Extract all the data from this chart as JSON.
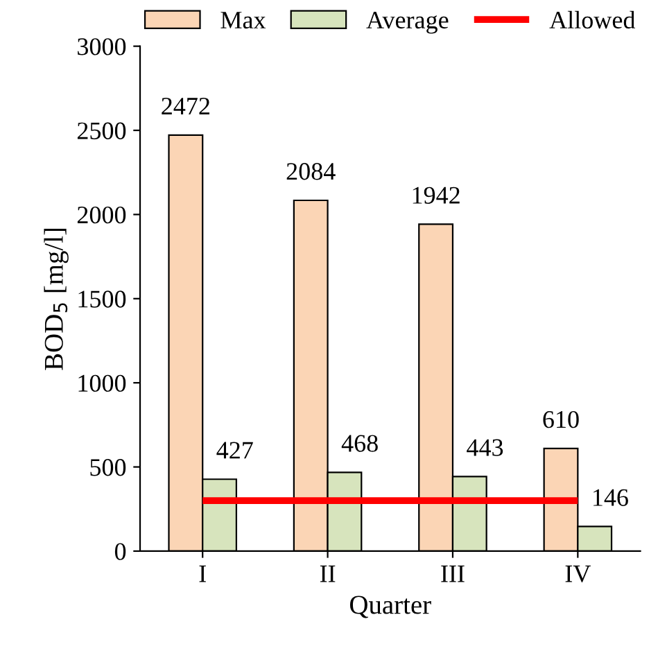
{
  "chart_data": {
    "type": "bar",
    "xlabel": "Quarter",
    "ylabel": "BOD$_{5}$ [mg/l]",
    "categories": [
      "I",
      "II",
      "III",
      "IV"
    ],
    "series": [
      {
        "name": "Max",
        "color": "#fbd5b5",
        "values": [
          2472,
          2084,
          1942,
          610
        ],
        "value_labels": [
          "2472",
          "2084",
          "1942",
          "610"
        ]
      },
      {
        "name": "Average",
        "color": "#d7e4bd",
        "values": [
          427,
          468,
          443,
          146
        ],
        "value_labels": [
          "427",
          "468",
          "443",
          "146"
        ]
      },
      {
        "name": "Allowed",
        "type": "line",
        "color": "#ff0000",
        "values": [
          300,
          300,
          300,
          300
        ]
      }
    ],
    "ylim": [
      0,
      3000
    ],
    "yticks": [
      0,
      500,
      1000,
      1500,
      2000,
      2500,
      3000
    ],
    "legend": "top",
    "grid": false
  }
}
